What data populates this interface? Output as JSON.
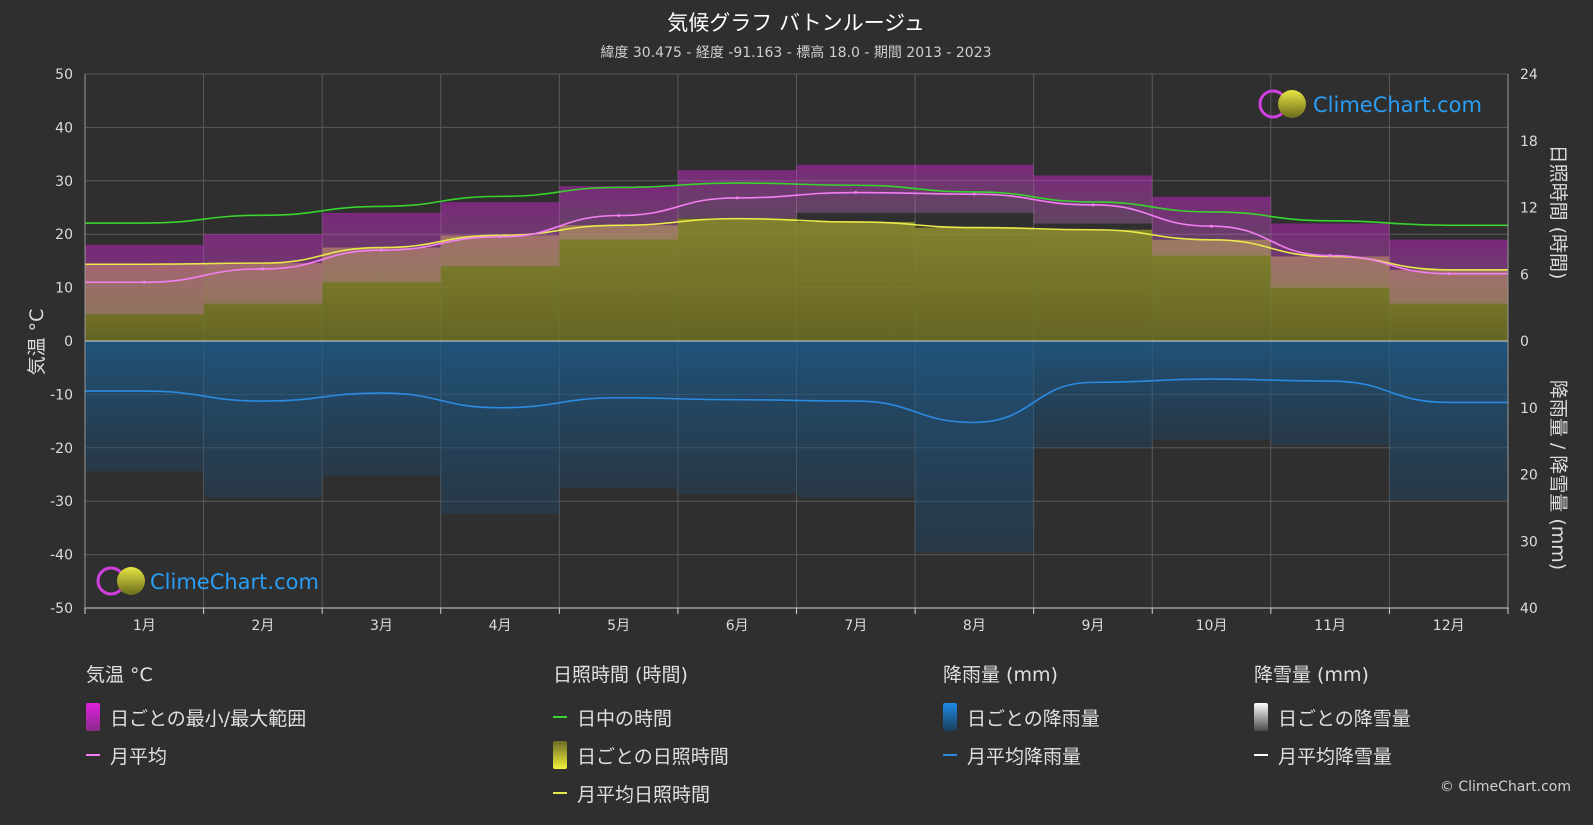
{
  "title": "気候グラフ バトンルージュ",
  "subtitle": "緯度 30.475 - 経度 -91.163 - 標高 18.0 - 期間 2013 - 2023",
  "brand": "ClimeChart.com",
  "copyright": "© ClimeChart.com",
  "colors": {
    "background": "#2f2f2f",
    "grid": "#5a5a5a",
    "daylight": "#39d32e",
    "sunshine_line": "#e9e94c",
    "sunshine_fill": "#9b9b2e",
    "temp_mean": "#f27ff2",
    "temp_range": "#d61ed6",
    "rain": "#1f77c7",
    "rain_line": "#2b8be0",
    "snow": "#ffffff",
    "brand": "#2a9df4"
  },
  "chart_data": {
    "type": "line",
    "months": [
      "1月",
      "2月",
      "3月",
      "4月",
      "5月",
      "6月",
      "7月",
      "8月",
      "9月",
      "10月",
      "11月",
      "12月"
    ],
    "axes": {
      "left": {
        "label": "気温 °C",
        "range": [
          -50,
          50
        ],
        "ticks": [
          "50",
          "40",
          "30",
          "20",
          "10",
          "0",
          "-10",
          "-20",
          "-30",
          "-40",
          "-50"
        ]
      },
      "right_top": {
        "label": "日照時間 (時間)",
        "range": [
          0,
          24
        ],
        "ticks": [
          "24",
          "18",
          "12",
          "6",
          "0"
        ]
      },
      "right_bottom": {
        "label": "降雨量 / 降雪量 (mm)",
        "range": [
          0,
          40
        ],
        "ticks": [
          "0",
          "10",
          "20",
          "30",
          "40"
        ]
      }
    },
    "grid": true,
    "series": [
      {
        "name": "日中の時間",
        "unit": "hours",
        "values": [
          10.6,
          11.3,
          12.1,
          13.0,
          13.8,
          14.2,
          14.0,
          13.4,
          12.5,
          11.6,
          10.8,
          10.4
        ]
      },
      {
        "name": "月平均日照時間",
        "unit": "hours",
        "values": [
          6.9,
          7.0,
          8.4,
          9.5,
          10.4,
          11.0,
          10.7,
          10.2,
          10.0,
          9.1,
          7.6,
          6.4
        ]
      },
      {
        "name": "月平均",
        "unit": "°C",
        "values": [
          11.0,
          13.5,
          17.0,
          19.5,
          23.5,
          26.8,
          27.8,
          27.5,
          25.5,
          21.5,
          16.0,
          12.6
        ]
      },
      {
        "name": "月平均降雨量",
        "unit": "mm",
        "values": [
          7.5,
          9.0,
          7.8,
          10.0,
          8.5,
          8.8,
          9.0,
          12.2,
          6.2,
          5.7,
          6.0,
          9.2
        ]
      },
      {
        "name": "月平均降雪量",
        "unit": "mm",
        "values": [
          0,
          0,
          0,
          0,
          0,
          0,
          0,
          0,
          0,
          0,
          0,
          0
        ]
      },
      {
        "name": "日ごとの最小/最大範囲",
        "unit": "°C",
        "min": [
          5,
          7,
          11,
          14,
          19,
          23,
          24,
          24,
          22,
          16,
          10,
          7
        ],
        "max": [
          18,
          20,
          24,
          26,
          29,
          32,
          33,
          33,
          31,
          27,
          22,
          19
        ]
      }
    ]
  },
  "legend": {
    "temperature": {
      "title": "気温 °C",
      "items": [
        {
          "label": "日ごとの最小/最大範囲",
          "icon": "temp-range-swatch"
        },
        {
          "label": "月平均",
          "icon": "temp-mean-line"
        }
      ]
    },
    "sunshine": {
      "title": "日照時間 (時間)",
      "items": [
        {
          "label": "日中の時間",
          "icon": "daylight-line"
        },
        {
          "label": "日ごとの日照時間",
          "icon": "sunshine-swatch"
        },
        {
          "label": "月平均日照時間",
          "icon": "sunshine-line"
        }
      ]
    },
    "rain": {
      "title": "降雨量 (mm)",
      "items": [
        {
          "label": "日ごとの降雨量",
          "icon": "rain-swatch"
        },
        {
          "label": "月平均降雨量",
          "icon": "rain-line"
        }
      ]
    },
    "snow": {
      "title": "降雪量 (mm)",
      "items": [
        {
          "label": "日ごとの降雪量",
          "icon": "snow-swatch"
        },
        {
          "label": "月平均降雪量",
          "icon": "snow-line"
        }
      ]
    }
  }
}
